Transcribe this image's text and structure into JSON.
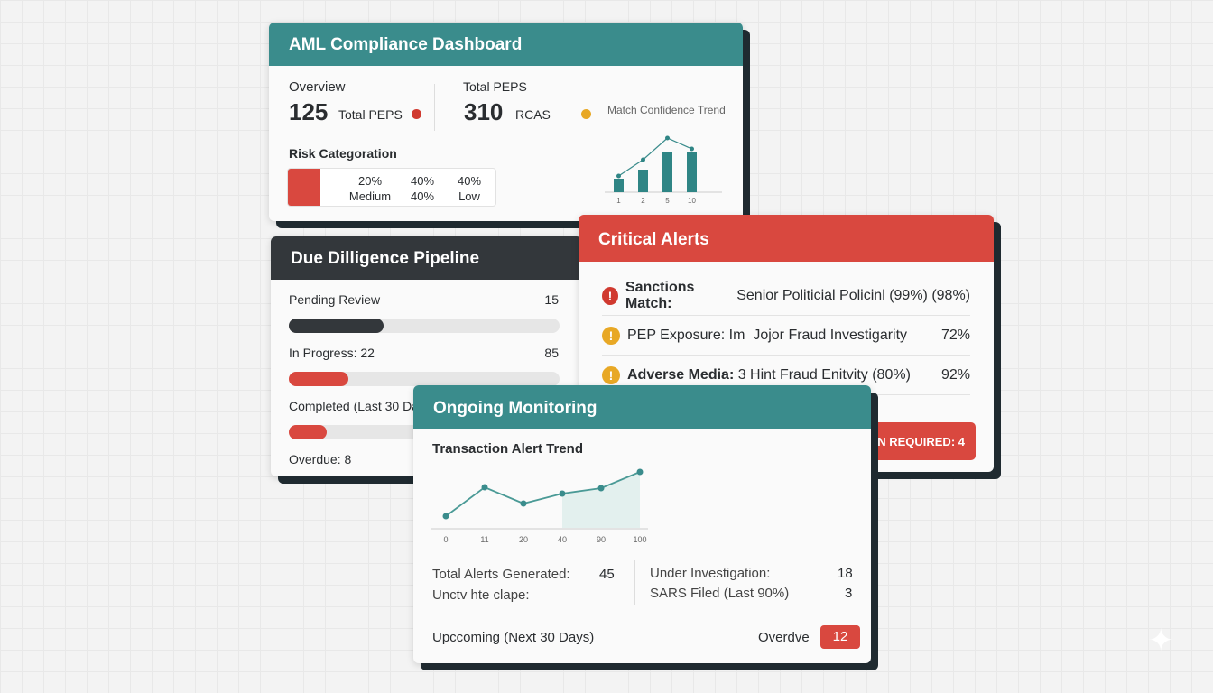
{
  "aml": {
    "title": "AML Compliance Dashboard",
    "overview_label": "Overview",
    "overview_value": "125",
    "overview_unit": "Total PEPS",
    "peps_label": "Total PEPS",
    "peps_value": "310",
    "peps_unit": "RCAS",
    "trend_label": "Match Confidence Trend",
    "risk_label": "Risk Categoration",
    "risk": [
      "20%",
      "40%",
      "40%",
      "Medium",
      "40%",
      "Low"
    ],
    "chart": {
      "type": "bar",
      "categories": [
        "1",
        "2",
        "5",
        "10"
      ],
      "values": [
        3,
        5,
        9,
        9
      ],
      "line": [
        3,
        6,
        10,
        8
      ]
    }
  },
  "pipeline": {
    "title": "Due Dilligence Pipeline",
    "items": [
      {
        "label": "Pending Review",
        "value": "15",
        "pct": 35,
        "color": "#33373b"
      },
      {
        "label": "In Progress: 22",
        "value": "85",
        "pct": 22,
        "color": "#d9483f"
      },
      {
        "label": "Completed (Last 30 Days)",
        "value": "",
        "pct": 14,
        "color": "#d9483f"
      }
    ],
    "overdue": "Overdue: 8"
  },
  "alerts": {
    "title": "Critical Alerts",
    "items": [
      {
        "bold": "Sanctions Match:",
        "text": " Senior Politicial Policinl (99%) (98%)",
        "value": "",
        "icon": "!",
        "color": "#d0392f"
      },
      {
        "bold": "",
        "text": "PEP Exposure: Im  Jojor Fraud Investigarity",
        "value": "72%",
        "icon": "!",
        "color": "#e8a825"
      },
      {
        "bold": "Adverse Media:",
        "text": " 3 Hint Fraud Enitvity (80%)",
        "value": "92%",
        "icon": "!",
        "color": "#e8a825"
      }
    ],
    "action": "ACTION REQUIRED: 4"
  },
  "monitoring": {
    "title": "Ongoing Monitoring",
    "chart_title": "Transaction Alert Trend",
    "chart_data": {
      "type": "line",
      "x": [
        "0",
        "11",
        "20",
        "40",
        "90",
        "100"
      ],
      "values": [
        13,
        45,
        27,
        38,
        44,
        62
      ],
      "ylim": [
        0,
        70
      ]
    },
    "stats": {
      "total_label": "Total Alerts Generated:",
      "total": "45",
      "unk_label": "Unctv hte clape:",
      "inv_label": "Under Investigation:",
      "inv": "18",
      "sars_label": "SARS Filed (Last 90%)",
      "sars": "3"
    },
    "upcoming": "Upccoming (Next 30 Days)",
    "overdue_label": "Overdve",
    "overdue": "12"
  }
}
